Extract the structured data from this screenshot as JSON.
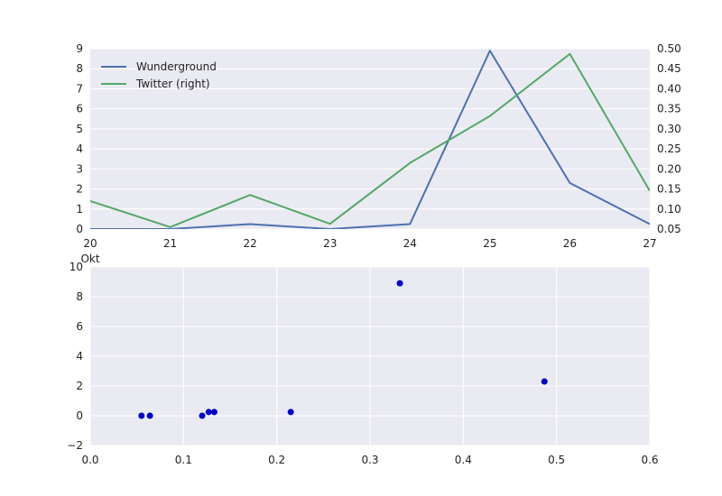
{
  "chart_data": [
    {
      "type": "line",
      "style": "seaborn-darkgrid",
      "grid": true,
      "legend": "upper-left",
      "x": [
        "20",
        "21",
        "22",
        "23",
        "24",
        "25",
        "26",
        "27"
      ],
      "xlabel_extra": "Okt",
      "xlim": [
        20,
        27
      ],
      "ylim": [
        0,
        9
      ],
      "y2lim": [
        0.05,
        0.5
      ],
      "yticks": [
        "0",
        "1",
        "2",
        "3",
        "4",
        "5",
        "6",
        "7",
        "8",
        "9"
      ],
      "y2ticks": [
        "0.05",
        "0.10",
        "0.15",
        "0.20",
        "0.25",
        "0.30",
        "0.35",
        "0.40",
        "0.45",
        "0.50"
      ],
      "series": [
        {
          "name": "Wunderground",
          "axis": "left",
          "color": "#4c72b0",
          "values": [
            0.0,
            0.0,
            0.25,
            0.0,
            0.25,
            8.9,
            2.3,
            0.25
          ]
        },
        {
          "name": "Twitter (right)",
          "axis": "right",
          "color": "#55a868",
          "values": [
            0.12,
            0.055,
            0.135,
            0.063,
            0.215,
            0.332,
            0.487,
            0.145
          ]
        }
      ]
    },
    {
      "type": "scatter",
      "style": "seaborn-darkgrid",
      "grid": true,
      "xlim": [
        0.0,
        0.6
      ],
      "ylim": [
        -2,
        10
      ],
      "xticks": [
        "0.0",
        "0.1",
        "0.2",
        "0.3",
        "0.4",
        "0.5",
        "0.6"
      ],
      "yticks": [
        "−2",
        "0",
        "2",
        "4",
        "6",
        "8",
        "10"
      ],
      "color": "#0000cc",
      "points": [
        {
          "x": 0.055,
          "y": 0.0
        },
        {
          "x": 0.064,
          "y": 0.0
        },
        {
          "x": 0.12,
          "y": 0.0
        },
        {
          "x": 0.127,
          "y": 0.25
        },
        {
          "x": 0.133,
          "y": 0.25
        },
        {
          "x": 0.215,
          "y": 0.25
        },
        {
          "x": 0.332,
          "y": 8.9
        },
        {
          "x": 0.487,
          "y": 2.3
        }
      ]
    }
  ]
}
